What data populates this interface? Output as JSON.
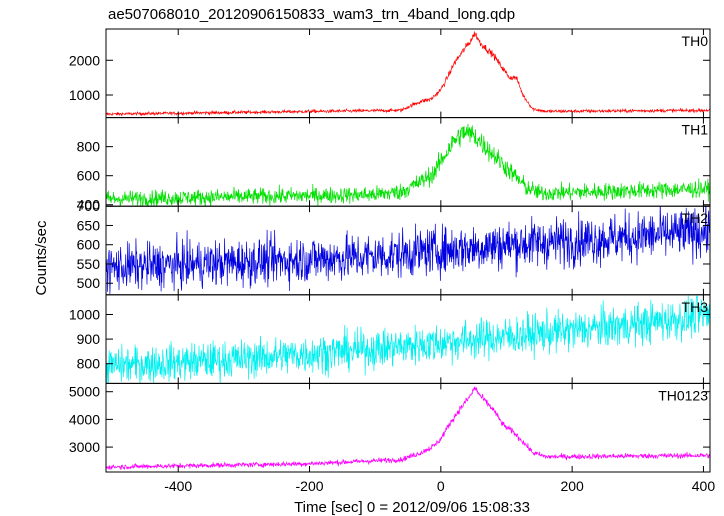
{
  "title": "ae507068010_20120906150833_wam3_trn_4band_long.qdp",
  "chart_data": {
    "type": "line",
    "title": "ae507068010_20120906150833_wam3_trn_4band_long.qdp",
    "xlabel": "Time [sec] 0 = 2012/09/06 15:08:33",
    "ylabel": "Counts/sec",
    "xlim": [
      -510,
      410
    ],
    "x_ticks": [
      -400,
      -200,
      0,
      200,
      400
    ],
    "grid": false,
    "panels": [
      {
        "name": "TH0",
        "color": "#ff0000",
        "ylim": [
          350,
          2900
        ],
        "y_ticks": [
          1000,
          2000
        ],
        "baseline_start": 450,
        "baseline_end": 560,
        "noise": 22,
        "keypoints": [
          [
            -510,
            450
          ],
          [
            -60,
            560
          ],
          [
            -45,
            700
          ],
          [
            -30,
            820
          ],
          [
            -15,
            880
          ],
          [
            0,
            1150
          ],
          [
            10,
            1500
          ],
          [
            20,
            1900
          ],
          [
            35,
            2300
          ],
          [
            45,
            2550
          ],
          [
            52,
            2780
          ],
          [
            60,
            2500
          ],
          [
            80,
            2150
          ],
          [
            95,
            1750
          ],
          [
            105,
            1500
          ],
          [
            115,
            1500
          ],
          [
            125,
            1000
          ],
          [
            140,
            600
          ],
          [
            160,
            530
          ],
          [
            410,
            560
          ]
        ]
      },
      {
        "name": "TH1",
        "color": "#00e000",
        "ylim": [
          390,
          1000
        ],
        "y_ticks": [
          400,
          600,
          800
        ],
        "baseline_start": 440,
        "baseline_end": 500,
        "noise": 28,
        "keypoints": [
          [
            -510,
            440
          ],
          [
            -100,
            470
          ],
          [
            -60,
            490
          ],
          [
            -30,
            560
          ],
          [
            -10,
            620
          ],
          [
            0,
            700
          ],
          [
            20,
            840
          ],
          [
            35,
            900
          ],
          [
            50,
            880
          ],
          [
            70,
            790
          ],
          [
            90,
            700
          ],
          [
            110,
            610
          ],
          [
            130,
            520
          ],
          [
            150,
            480
          ],
          [
            410,
            510
          ]
        ]
      },
      {
        "name": "TH2",
        "color": "#0000e0",
        "ylim": [
          470,
          700
        ],
        "y_ticks": [
          500,
          550,
          600,
          650,
          700
        ],
        "baseline_start": 540,
        "baseline_end": 635,
        "noise": 30,
        "keypoints": [
          [
            -510,
            540
          ],
          [
            -300,
            555
          ],
          [
            -100,
            570
          ],
          [
            100,
            600
          ],
          [
            250,
            615
          ],
          [
            410,
            635
          ]
        ]
      },
      {
        "name": "TH3",
        "color": "#00f0f0",
        "ylim": [
          720,
          1080
        ],
        "y_ticks": [
          800,
          900,
          1000
        ],
        "baseline_start": 790,
        "baseline_end": 1000,
        "noise": 38,
        "keypoints": [
          [
            -510,
            790
          ],
          [
            -300,
            820
          ],
          [
            -100,
            860
          ],
          [
            100,
            910
          ],
          [
            300,
            960
          ],
          [
            410,
            1000
          ]
        ]
      },
      {
        "name": "TH0123",
        "color": "#ff00ff",
        "ylim": [
          2100,
          5300
        ],
        "y_ticks": [
          3000,
          4000,
          5000
        ],
        "baseline_start": 2280,
        "baseline_end": 2700,
        "noise": 45,
        "keypoints": [
          [
            -510,
            2280
          ],
          [
            -200,
            2400
          ],
          [
            -60,
            2550
          ],
          [
            -30,
            2800
          ],
          [
            -10,
            3050
          ],
          [
            0,
            3300
          ],
          [
            15,
            3900
          ],
          [
            30,
            4400
          ],
          [
            45,
            4850
          ],
          [
            52,
            5150
          ],
          [
            60,
            4850
          ],
          [
            80,
            4350
          ],
          [
            95,
            3800
          ],
          [
            110,
            3550
          ],
          [
            125,
            3200
          ],
          [
            140,
            2800
          ],
          [
            160,
            2650
          ],
          [
            410,
            2700
          ]
        ]
      }
    ]
  }
}
